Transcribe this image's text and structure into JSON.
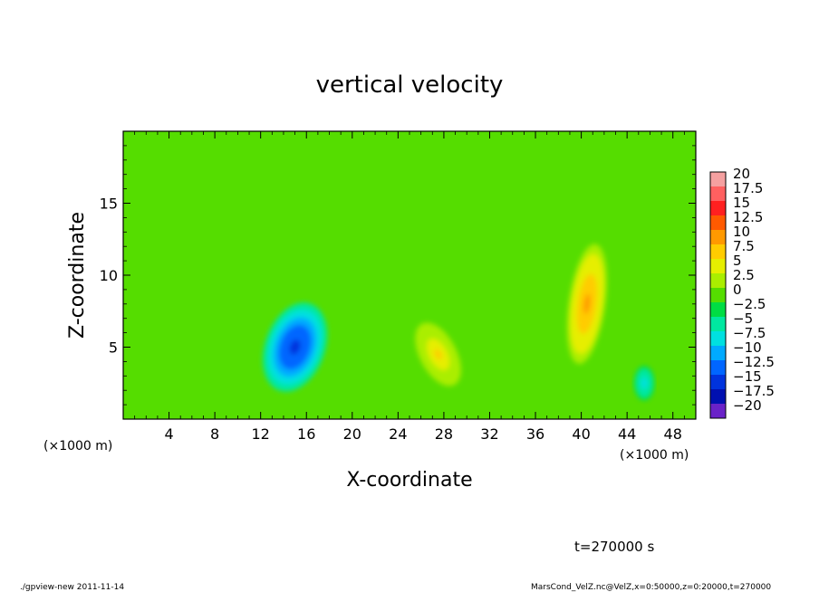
{
  "chart_data": {
    "type": "heatmap",
    "title": "vertical velocity",
    "xlabel": "X-coordinate",
    "ylabel": "Z-coordinate",
    "x_unit": "(×1000 m)",
    "y_unit": "(×1000 m)",
    "xlim": [
      0,
      50
    ],
    "ylim": [
      0,
      20
    ],
    "x_ticks": [
      4,
      8,
      12,
      16,
      20,
      24,
      28,
      32,
      36,
      40,
      44,
      48
    ],
    "y_ticks": [
      5,
      10,
      15
    ],
    "colorbar": {
      "levels": [
        20,
        17.5,
        15,
        12.5,
        10,
        7.5,
        5,
        2.5,
        0,
        -2.5,
        -5,
        -7.5,
        -10,
        -12.5,
        -15,
        -17.5,
        -20
      ],
      "labels": [
        "20",
        "17.5",
        "15",
        "12.5",
        "10",
        "7.5",
        "5",
        "2.5",
        "0",
        "−2.5",
        "−5",
        "−7.5",
        "−10",
        "−12.5",
        "−15",
        "−17.5",
        "−20"
      ],
      "colors": [
        "#f5a0a0",
        "#ff6060",
        "#ff2020",
        "#ff5a00",
        "#ff9900",
        "#ffcc00",
        "#e6ee00",
        "#aaee00",
        "#55dd00",
        "#00dd44",
        "#00e8a0",
        "#00e0e0",
        "#00aaff",
        "#0066ff",
        "#0033dd",
        "#0010b0",
        "#6a22c8"
      ]
    },
    "features": [
      {
        "x": 15,
        "z": 5,
        "value": -14
      },
      {
        "x": 27.5,
        "z": 4.5,
        "value": 8
      },
      {
        "x": 40.5,
        "z": 8,
        "value": 11
      },
      {
        "x": 45.5,
        "z": 2.5,
        "value": -6
      }
    ],
    "time_label": "t=270000 s"
  },
  "footer": {
    "left": "./gpview-new  2011-11-14",
    "right": "MarsCond_VelZ.nc@VelZ,x=0:50000,z=0:20000,t=270000"
  }
}
